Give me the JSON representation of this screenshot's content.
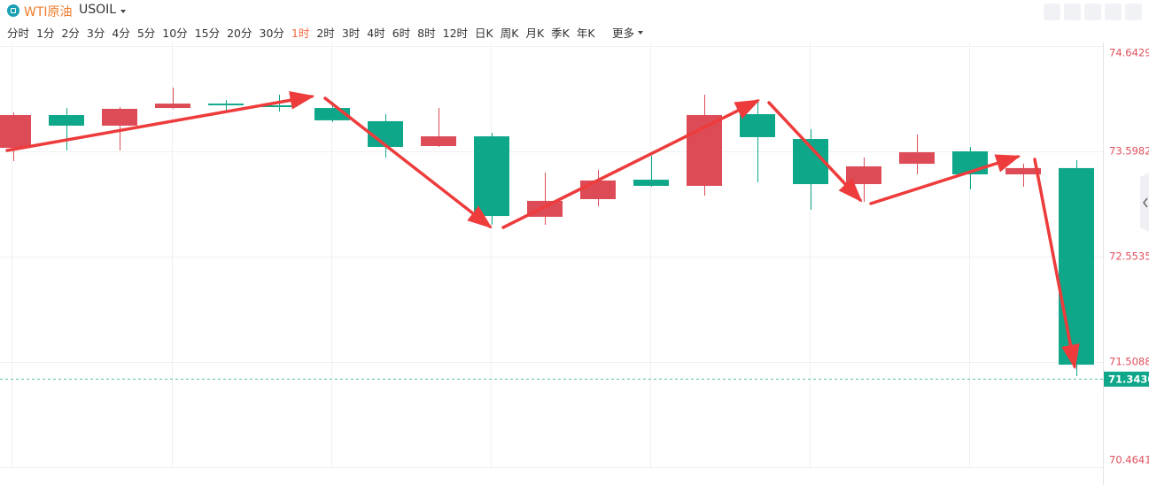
{
  "chart_data": {
    "type": "candlestick",
    "instrument": "WTI原油",
    "symbol": "USOIL",
    "timeframes": [
      "分时",
      "1分",
      "2分",
      "3分",
      "4分",
      "5分",
      "10分",
      "15分",
      "20分",
      "30分",
      "1时",
      "2时",
      "3时",
      "4时",
      "6时",
      "8时",
      "12时",
      "日K",
      "周K",
      "月K",
      "季K",
      "年K"
    ],
    "active_timeframe": 10,
    "more": "更多",
    "up_color": "#dd4b57",
    "down_color": "#0ea78a",
    "open": [
      73.633,
      73.958,
      73.853,
      74.028,
      74.072,
      74.055,
      74.028,
      73.897,
      73.651,
      73.747,
      72.949,
      73.124,
      73.317,
      73.256,
      73.967,
      73.721,
      73.273,
      73.475,
      73.598,
      73.37,
      73.432
    ],
    "high": [
      73.985,
      74.028,
      74.037,
      74.23,
      74.107,
      74.16,
      74.09,
      73.967,
      74.028,
      73.783,
      73.388,
      73.414,
      73.554,
      74.16,
      74.09,
      73.818,
      73.537,
      73.765,
      73.642,
      73.475,
      73.51
    ],
    "low": [
      73.502,
      73.607,
      73.607,
      74.02,
      74.002,
      73.993,
      73.888,
      73.537,
      73.642,
      72.87,
      72.87,
      73.054,
      73.247,
      73.159,
      73.291,
      73.019,
      73.098,
      73.37,
      73.221,
      73.247,
      71.368
    ],
    "close": [
      73.958,
      73.853,
      74.02,
      74.072,
      74.055,
      74.037,
      73.906,
      73.642,
      73.747,
      72.957,
      73.107,
      73.309,
      73.256,
      73.958,
      73.739,
      73.273,
      73.449,
      73.589,
      73.37,
      73.432,
      71.482
    ],
    "ylim": [
      70.4641,
      74.6429
    ],
    "yticks": [
      70.4641,
      71.5088,
      72.5535,
      73.5982,
      74.6429
    ],
    "current_price": {
      "value": 71.343,
      "label": "71.3430"
    },
    "grid": true
  }
}
